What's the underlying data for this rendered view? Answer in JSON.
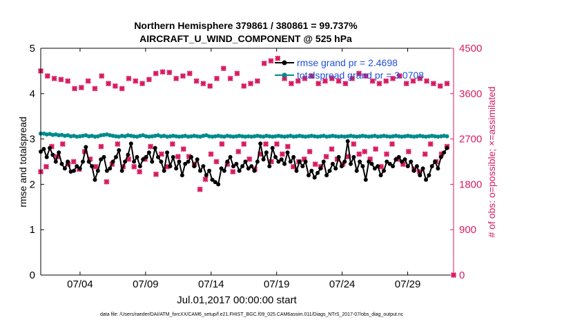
{
  "chart_data": {
    "type": "line",
    "title_line1": "Northern Hemisphere 379861 / 380861 = 99.737%",
    "title_line2": "AIRCRAFT_U_WIND_COMPONENT @ 525 hPa",
    "xlabel": "Jul.01,2017 00:00:00 start",
    "ylabel_left": "rmse and totalspread",
    "ylabel_right": "# of obs: o=possible; ×=assimilated",
    "footnote": "data file: /Users/raeder/DAI/ATM_forcXX/CAM6_setup/f.e21.FHIST_BGC.f09_025.CAM6assim.011/Diags_NTrS_2017-07/obs_diag_output.nc",
    "x_range_days": [
      0,
      31.5
    ],
    "ylim_left": [
      0,
      5
    ],
    "ylim_right": [
      0,
      4500
    ],
    "x_ticks": [
      {
        "day": 3,
        "label": "07/04"
      },
      {
        "day": 8,
        "label": "07/09"
      },
      {
        "day": 13,
        "label": "07/14"
      },
      {
        "day": 18,
        "label": "07/19"
      },
      {
        "day": 23,
        "label": "07/24"
      },
      {
        "day": 28,
        "label": "07/29"
      }
    ],
    "y_ticks_left": [
      "0",
      "1",
      "2",
      "3",
      "4",
      "5"
    ],
    "y_ticks_right": [
      "0",
      "900",
      "1800",
      "2700",
      "3600",
      "4500"
    ],
    "legend": [
      {
        "label": "rmse grand pr = 2.4698",
        "color": "#000000"
      },
      {
        "label": "totalspread grand pr = 3.0708",
        "color": "#008b8b"
      }
    ],
    "colors": {
      "rmse": "#000000",
      "spread": "#008b8b",
      "obs": "#d81b60"
    },
    "rmse": [
      2.72,
      2.78,
      2.6,
      2.8,
      2.65,
      2.5,
      2.7,
      2.45,
      2.35,
      2.5,
      2.28,
      2.3,
      2.4,
      2.35,
      2.5,
      2.82,
      2.5,
      2.4,
      2.1,
      2.3,
      2.55,
      2.6,
      2.3,
      2.35,
      2.5,
      2.6,
      2.75,
      2.3,
      2.5,
      2.65,
      2.9,
      2.5,
      2.6,
      2.4,
      2.55,
      2.6,
      2.7,
      2.5,
      2.8,
      2.6,
      2.5,
      2.3,
      2.7,
      2.4,
      2.6,
      2.35,
      2.5,
      2.2,
      2.45,
      2.5,
      2.6,
      2.4,
      2.55,
      2.3,
      2.4,
      2.2,
      2.3,
      2.1,
      2.05,
      2.0,
      2.35,
      2.3,
      2.5,
      2.6,
      2.4,
      2.45,
      2.3,
      2.4,
      2.5,
      2.35,
      2.4,
      2.3,
      2.5,
      2.9,
      2.55,
      2.7,
      2.4,
      2.8,
      2.6,
      2.5,
      2.55,
      2.45,
      2.7,
      2.5,
      2.6,
      2.3,
      2.5,
      2.4,
      2.5,
      2.2,
      2.3,
      2.15,
      2.25,
      2.35,
      2.5,
      2.2,
      2.3,
      2.45,
      2.35,
      2.6,
      2.4,
      2.5,
      2.95,
      2.45,
      2.6,
      2.3,
      2.5,
      2.4,
      2.1,
      2.5,
      2.45,
      2.35,
      2.4,
      2.2,
      2.3,
      2.5,
      2.45,
      2.4,
      2.55,
      2.6,
      2.5,
      2.55,
      2.4,
      2.5,
      2.3,
      2.4,
      2.2,
      2.35,
      2.1,
      2.2,
      2.4,
      2.5,
      2.35,
      2.6,
      2.7,
      2.8
    ],
    "spread": [
      3.12,
      3.12,
      3.1,
      3.11,
      3.09,
      3.1,
      3.08,
      3.09,
      3.07,
      3.08,
      3.06,
      3.07,
      3.05,
      3.06,
      3.07,
      3.08,
      3.06,
      3.07,
      3.05,
      3.06,
      3.08,
      3.09,
      3.1,
      3.08,
      3.07,
      3.06,
      3.05,
      3.07,
      3.06,
      3.08,
      3.07,
      3.06,
      3.05,
      3.07,
      3.08,
      3.06,
      3.05,
      3.06,
      3.07,
      3.08,
      3.06,
      3.07,
      3.05,
      3.06,
      3.07,
      3.06,
      3.05,
      3.06,
      3.07,
      3.05,
      3.06,
      3.07,
      3.06,
      3.05,
      3.07,
      3.08,
      3.06,
      3.05,
      3.06,
      3.07,
      3.06,
      3.05,
      3.07,
      3.06,
      3.05,
      3.06,
      3.07,
      3.06,
      3.05,
      3.06,
      3.05,
      3.06,
      3.07,
      3.06,
      3.05,
      3.07,
      3.06,
      3.05,
      3.06,
      3.07,
      3.06,
      3.05,
      3.06,
      3.07,
      3.05,
      3.06,
      3.07,
      3.06,
      3.05,
      3.06,
      3.07,
      3.06,
      3.05,
      3.06,
      3.07,
      3.05,
      3.06,
      3.07,
      3.06,
      3.05,
      3.06,
      3.05,
      3.06,
      3.07,
      3.06,
      3.05,
      3.06,
      3.07,
      3.06,
      3.05,
      3.06,
      3.07,
      3.05,
      3.06,
      3.07,
      3.06,
      3.05,
      3.06,
      3.07,
      3.06,
      3.05,
      3.06,
      3.07,
      3.06,
      3.05,
      3.06,
      3.07,
      3.06,
      3.05,
      3.06,
      3.07,
      3.06,
      3.05,
      3.06,
      3.07,
      3.06
    ],
    "obs_upper": [
      4050,
      3950,
      3900,
      3880,
      3850,
      3700,
      3720,
      3850,
      3700,
      3950,
      3800,
      3750,
      3700,
      3900,
      3850,
      3800,
      3880,
      4000,
      4030,
      4020,
      3900,
      3950,
      4000,
      3850,
      3800,
      3750,
      3900,
      4100,
      3900,
      4000,
      3750,
      3800,
      3850,
      4200,
      4250,
      4300,
      3900,
      3800,
      3850,
      3900,
      3950,
      3800,
      3850,
      3900,
      3850,
      3800,
      3900,
      4000,
      3950,
      3850,
      3800,
      3850,
      3900,
      3950,
      3800,
      3850,
      3900,
      3850,
      3800,
      3750,
      3800
    ],
    "obs_lower": [
      2050,
      2150,
      2550,
      2350,
      2600,
      2200,
      2250,
      2100,
      2450,
      2300,
      2150,
      2550,
      1850,
      2200,
      2600,
      2150,
      2300,
      2150,
      2050,
      2300,
      2550,
      2000,
      2400,
      2150,
      2600,
      2350,
      2500,
      2350,
      2200,
      1700,
      1900,
      2400,
      2250,
      2600,
      2200,
      2050,
      2450,
      2600,
      2300,
      2100,
      2400,
      2600,
      2250,
      2600,
      2400,
      2550,
      2150,
      2250,
      2300,
      2450,
      2200,
      2150,
      2350,
      2500,
      2300,
      2200,
      2350,
      2600,
      2400,
      2450,
      2300,
      2500,
      2150,
      2400,
      2600,
      2300,
      2200,
      2450,
      2100,
      2050,
      2400,
      2600,
      2250,
      2400,
      2550
    ]
  }
}
